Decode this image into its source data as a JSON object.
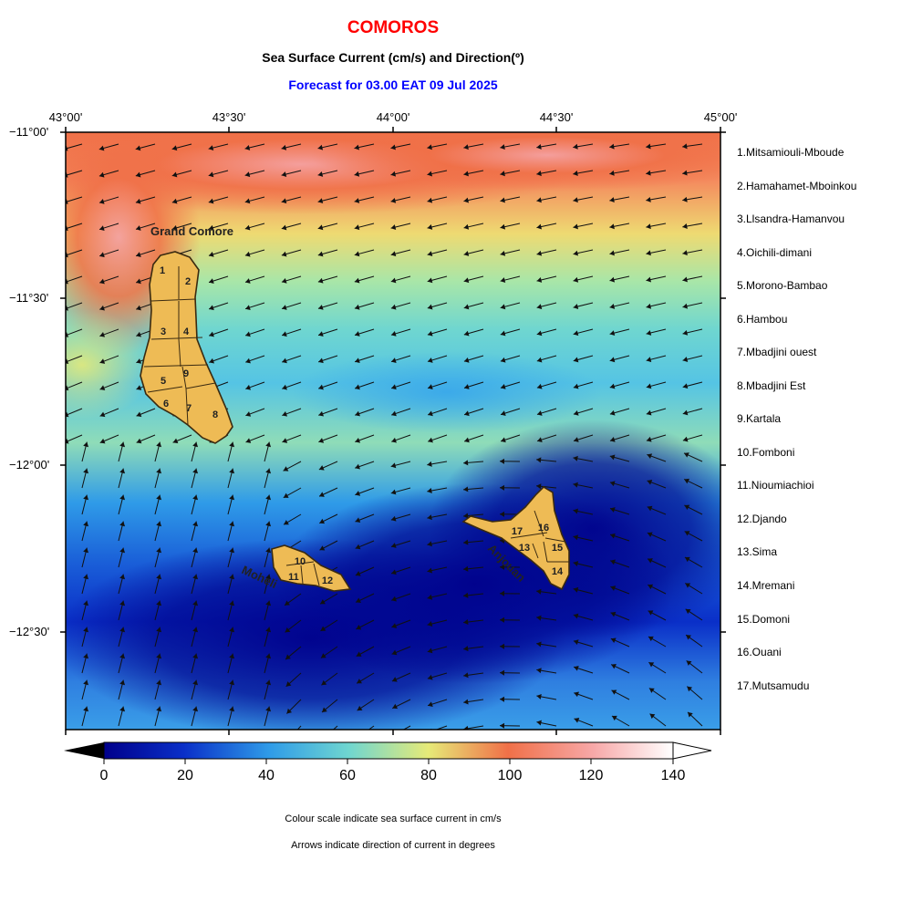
{
  "header": {
    "title": "COMOROS",
    "subtitle": "Sea Surface Current (cm/s) and Direction(º)",
    "forecast": "Forecast for  03.00 EAT 09 Jul 2025"
  },
  "axes": {
    "lon_labels": [
      "43°00'",
      "43°30'",
      "44°00'",
      "44°30'",
      "45°00'"
    ],
    "lat_labels": [
      "−11°00'",
      "−11°30'",
      "−12°00'",
      "−12°30'"
    ]
  },
  "islands": {
    "grand_comore": "Grand Comore",
    "moheli": "Moheli",
    "anjouan": "Anjouan",
    "region_numbers": [
      "1",
      "2",
      "3",
      "4",
      "5",
      "6",
      "7",
      "8",
      "9",
      "10",
      "11",
      "12",
      "13",
      "14",
      "15",
      "16",
      "17"
    ]
  },
  "legend": [
    "1.Mitsamiouli-Mboude",
    "2.Hamahamet-Mboinkou",
    "3.Llsandra-Hamanvou",
    "4.Oichili-dimani",
    "5.Morono-Bambao",
    "6.Hambou",
    "7.Mbadjini ouest",
    "8.Mbadjini Est",
    "9.Kartala",
    "10.Fomboni",
    "11.Nioumiachioi",
    "12.Djando",
    "13.Sima",
    "14.Mremani",
    "15.Domoni",
    "16.Ouani",
    "17.Mutsamudu"
  ],
  "colorbar": {
    "ticks": [
      "0",
      "20",
      "40",
      "60",
      "80",
      "100",
      "120",
      "140"
    ],
    "range_cm_s": [
      0,
      140
    ],
    "colors": [
      "#00008b",
      "#0a2fc8",
      "#2f9be8",
      "#6fd6d0",
      "#e6ea78",
      "#f07048",
      "#f7a8a8",
      "#ffffff"
    ]
  },
  "notes": {
    "line1": "Colour scale indicate sea surface current in cm/s",
    "line2": "Arrows indicate direction of current in degrees"
  }
}
